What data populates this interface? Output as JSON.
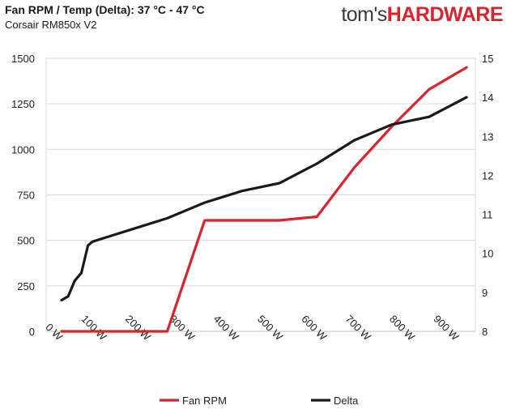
{
  "header": {
    "title": "Fan RPM / Temp (Delta): 37 °C - 47 °C",
    "subtitle": "Corsair RM850x V2",
    "logo_part1": "tom's",
    "logo_part2": "HARDWARE"
  },
  "chart_data": {
    "type": "line",
    "x": [
      15,
      30,
      45,
      60,
      75,
      85,
      170,
      255,
      340,
      425,
      510,
      595,
      680,
      765,
      850,
      935
    ],
    "x_ticks": [
      0,
      100,
      200,
      300,
      400,
      500,
      600,
      700,
      800,
      900
    ],
    "x_tick_labels": [
      "0 W",
      "100 W",
      "200 W",
      "300 W",
      "400 W",
      "500 W",
      "600 W",
      "700 W",
      "800 W",
      "900 W"
    ],
    "xlim": [
      -20,
      955
    ],
    "y_left": {
      "ylim": [
        0,
        1500
      ],
      "ticks": [
        0,
        250,
        500,
        750,
        1000,
        1250,
        1500
      ]
    },
    "y_right": {
      "ylim": [
        8,
        15
      ],
      "ticks": [
        8,
        9,
        10,
        11,
        12,
        13,
        14,
        15
      ]
    },
    "series": [
      {
        "name": "Fan RPM",
        "axis": "left",
        "color": "#d9232d",
        "values": [
          0,
          0,
          0,
          0,
          0,
          0,
          0,
          0,
          610,
          610,
          610,
          630,
          900,
          1125,
          1330,
          1450
        ]
      },
      {
        "name": "Delta",
        "axis": "right",
        "color": "#1a1a1a",
        "values": [
          8.8,
          8.9,
          9.3,
          9.5,
          10.2,
          10.3,
          10.6,
          10.9,
          11.3,
          11.6,
          11.8,
          12.3,
          12.9,
          13.3,
          13.5,
          14.0
        ]
      }
    ],
    "grid": "horizontal",
    "legend_position": "bottom"
  }
}
